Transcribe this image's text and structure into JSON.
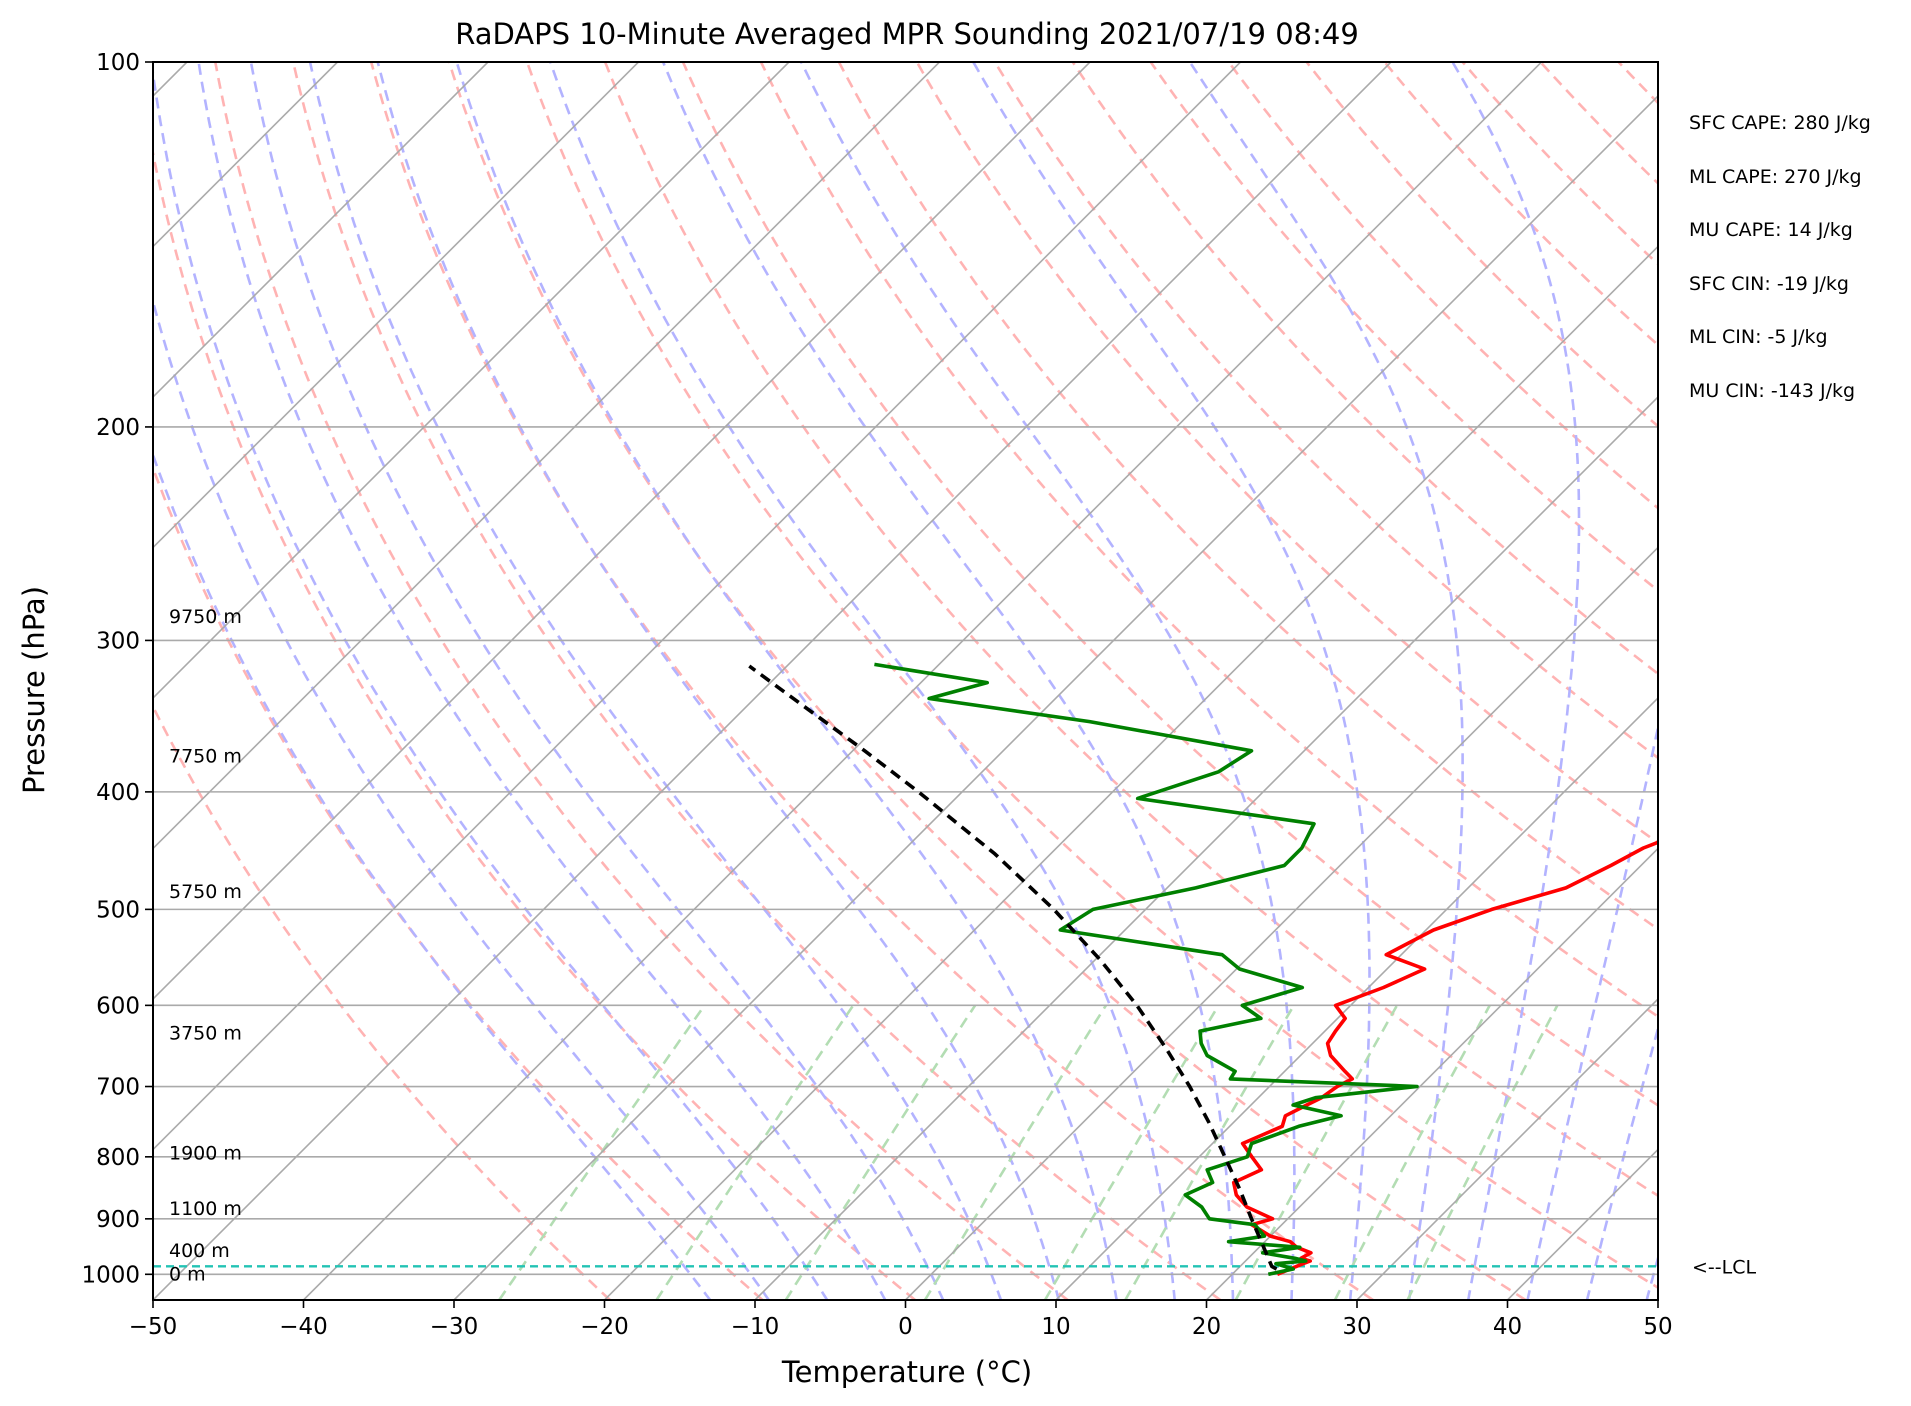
{
  "chart_data": {
    "type": "skew-t",
    "title": "RaDAPS 10-Minute Averaged MPR Sounding 2021/07/19 08:49",
    "xlabel": "Temperature (°C)",
    "ylabel": "Pressure (hPa)",
    "xlim": [
      -50,
      50
    ],
    "ylim": [
      1050,
      100
    ],
    "x_ticks": [
      "−50",
      "−40",
      "−30",
      "−20",
      "−10",
      "0",
      "10",
      "20",
      "30",
      "40",
      "50"
    ],
    "y_ticks": [
      "100",
      "200",
      "300",
      "400",
      "500",
      "600",
      "700",
      "800",
      "900",
      "1000"
    ],
    "grid": true,
    "stats": [
      "SFC CAPE: 280 J/kg",
      "ML CAPE: 270 J/kg",
      "MU CAPE: 14 J/kg",
      "SFC CIN: -19 J/kg",
      "ML CIN: -5 J/kg",
      "MU CIN: -143 J/kg"
    ],
    "height_labels": [
      {
        "text": "0 m",
        "p": 1000
      },
      {
        "text": "400 m",
        "p": 957
      },
      {
        "text": "1100 m",
        "p": 883
      },
      {
        "text": "1900 m",
        "p": 795
      },
      {
        "text": "3750 m",
        "p": 633
      },
      {
        "text": "5750 m",
        "p": 484
      },
      {
        "text": "7750 m",
        "p": 374
      },
      {
        "text": "9750 m",
        "p": 287
      }
    ],
    "lcl": {
      "p": 985,
      "label": "<--LCL",
      "color": "#22c3b4"
    },
    "colors": {
      "temperature": "#ff0000",
      "dewpoint": "#008000",
      "parcel": "#000000",
      "isotherms": "#aaaaaa",
      "dry_adiabats": "#ffb3b3",
      "moist_adiabats": "#b3b3ff",
      "mixing_ratio": "#b3ddb3"
    },
    "series": [
      {
        "key": "temperature",
        "values_p": [
          1000,
          990,
          980,
          975,
          970,
          960,
          950,
          940,
          930,
          910,
          900,
          880,
          860,
          840,
          820,
          800,
          780,
          755,
          740,
          725,
          715,
          700,
          690,
          680,
          660,
          645,
          630,
          615,
          600,
          580,
          560,
          545,
          520,
          500,
          480,
          460,
          445,
          425,
          405,
          385,
          370,
          350,
          335,
          325,
          314
        ],
        "values_t": [
          23,
          23.5,
          24,
          24.3,
          23.5,
          23.8,
          22.5,
          21.7,
          20,
          18,
          19,
          16.5,
          15,
          14,
          15,
          13.5,
          12,
          13.5,
          13,
          13.7,
          14.2,
          14.5,
          15,
          14,
          12,
          11,
          10.7,
          10.5,
          9,
          11,
          12.5,
          9,
          10.5,
          13,
          16.5,
          18,
          19,
          21.5,
          23.5,
          26.5,
          28.5,
          33,
          37.5,
          36.5,
          39.5
        ]
      },
      {
        "key": "dewpoint",
        "values_p": [
          1000,
          990,
          980,
          975,
          970,
          960,
          950,
          940,
          930,
          910,
          900,
          880,
          860,
          840,
          820,
          800,
          780,
          755,
          740,
          725,
          715,
          700,
          690,
          680,
          660,
          645,
          630,
          615,
          600,
          580,
          560,
          545,
          520,
          500,
          480,
          460,
          445,
          425,
          405,
          385,
          370,
          350,
          335,
          325,
          314
        ],
        "values_t": [
          22.4,
          23.7,
          22.2,
          24,
          23.1,
          20.6,
          22.7,
          17.6,
          19.6,
          18.2,
          14.8,
          13.5,
          11.6,
          12.6,
          11.4,
          13.2,
          12.6,
          14.6,
          16.7,
          12.8,
          13.8,
          19.8,
          6.9,
          6.7,
          3.8,
          2.6,
          1.7,
          4.9,
          2.8,
          5.6,
          0.2,
          -1.9,
          -14.3,
          -13.5,
          -8.1,
          -3.7,
          -3.7,
          -4.5,
          -17.9,
          -14.3,
          -13.5,
          -26.2,
          -38.4,
          -35.6,
          -44.3
        ]
      },
      {
        "key": "parcel",
        "values_p": [
          990,
          985,
          950,
          900,
          850,
          800,
          750,
          700,
          650,
          600,
          550,
          500,
          450,
          400,
          370,
          340,
          315
        ],
        "values_t": [
          22.6,
          22.1,
          20.3,
          17.6,
          14.8,
          11.7,
          8.4,
          4.7,
          0.5,
          -4.2,
          -9.7,
          -16.1,
          -23.7,
          -32.9,
          -39.2,
          -46.2,
          -52.5
        ]
      }
    ]
  }
}
